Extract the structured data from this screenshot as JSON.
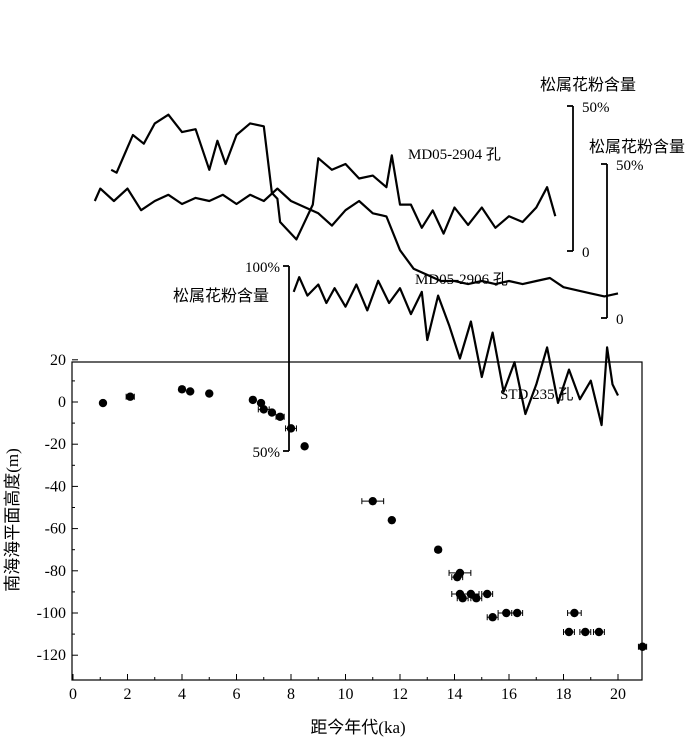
{
  "chart_data": {
    "type": "scatter",
    "xlabel": "距今年代(ka)",
    "ylabel": "南海海平面高度(m)",
    "xlim": [
      0,
      21
    ],
    "ylim": [
      -130,
      20
    ],
    "x_ticks": [
      "0",
      "2",
      "4",
      "6",
      "8",
      "10",
      "12",
      "14",
      "16",
      "18",
      "20"
    ],
    "y_ticks": [
      "20",
      "0",
      "-20",
      "-40",
      "-60",
      "-80",
      "-100",
      "-120"
    ],
    "sea_level_points": [
      {
        "x": 1.1,
        "y": -0.5,
        "xerr": 0.0
      },
      {
        "x": 2.1,
        "y": 2.5,
        "xerr": 0.15
      },
      {
        "x": 4.0,
        "y": 6.0,
        "xerr": 0.1
      },
      {
        "x": 4.3,
        "y": 5.0,
        "xerr": 0.0
      },
      {
        "x": 5.0,
        "y": 4.0,
        "xerr": 0.0
      },
      {
        "x": 6.6,
        "y": 1.0,
        "xerr": 0.0
      },
      {
        "x": 6.9,
        "y": -0.5,
        "xerr": 0.0
      },
      {
        "x": 7.0,
        "y": -3.5,
        "xerr": 0.2
      },
      {
        "x": 7.3,
        "y": -5.0,
        "xerr": 0.0
      },
      {
        "x": 7.6,
        "y": -7.0,
        "xerr": 0.15
      },
      {
        "x": 8.0,
        "y": -12.5,
        "xerr": 0.2
      },
      {
        "x": 8.5,
        "y": -21.0,
        "xerr": 0.0
      },
      {
        "x": 11.0,
        "y": -47.0,
        "xerr": 0.4
      },
      {
        "x": 11.7,
        "y": -56.0,
        "xerr": 0.0
      },
      {
        "x": 13.4,
        "y": -70.0,
        "xerr": 0.1
      },
      {
        "x": 14.2,
        "y": -81.0,
        "xerr": 0.4
      },
      {
        "x": 14.1,
        "y": -83.0,
        "xerr": 0.2
      },
      {
        "x": 14.2,
        "y": -91.0,
        "xerr": 0.3
      },
      {
        "x": 14.3,
        "y": -93.0,
        "xerr": 0.2
      },
      {
        "x": 14.6,
        "y": -91.0,
        "xerr": 0.3
      },
      {
        "x": 14.8,
        "y": -93.0,
        "xerr": 0.2
      },
      {
        "x": 15.2,
        "y": -91.0,
        "xerr": 0.2
      },
      {
        "x": 15.4,
        "y": -102.0,
        "xerr": 0.2
      },
      {
        "x": 15.9,
        "y": -100.0,
        "xerr": 0.3
      },
      {
        "x": 16.3,
        "y": -100.0,
        "xerr": 0.2
      },
      {
        "x": 18.2,
        "y": -109.0,
        "xerr": 0.2
      },
      {
        "x": 18.4,
        "y": -100.0,
        "xerr": 0.25
      },
      {
        "x": 18.8,
        "y": -109.0,
        "xerr": 0.2
      },
      {
        "x": 19.3,
        "y": -109.0,
        "xerr": 0.2
      },
      {
        "x": 20.9,
        "y": -116.0,
        "xerr": 0.15
      }
    ],
    "pollen_records": [
      {
        "label": "MD05-2904 孔",
        "scale_title": "松属花粉含量",
        "scale_top_label": "50%",
        "scale_bottom_label": "0",
        "scale_range": [
          0,
          50
        ],
        "x": [
          1.4,
          1.6,
          2.2,
          2.6,
          3.0,
          3.5,
          4.0,
          4.5,
          5.0,
          5.3,
          5.6,
          6.0,
          6.5,
          7.0,
          7.3,
          7.5,
          7.6,
          8.0,
          8.2,
          8.4,
          8.8,
          9.0,
          9.5,
          10.0,
          10.5,
          11.0,
          11.5,
          11.7,
          12.0,
          12.4,
          12.8,
          13.2,
          13.6,
          14.0,
          14.5,
          15.0,
          15.5,
          16.0,
          16.5,
          17.0,
          17.4,
          17.7
        ],
        "values": [
          28,
          27,
          40,
          37,
          44,
          47,
          41,
          42,
          28,
          38,
          30,
          40,
          44,
          43,
          20,
          18,
          10,
          6,
          4,
          8,
          16,
          32,
          28,
          30,
          25,
          26,
          22,
          33,
          16,
          16,
          8,
          14,
          6,
          15,
          9,
          15,
          8,
          12,
          10,
          15,
          22,
          12
        ]
      },
      {
        "label": "MD05-2906 孔",
        "scale_title": "松属花粉含量",
        "scale_top_label": "50%",
        "scale_bottom_label": "0",
        "scale_range": [
          0,
          50
        ],
        "x": [
          0.8,
          1.0,
          1.5,
          2.0,
          2.5,
          3.0,
          3.5,
          4.0,
          4.5,
          5.0,
          5.5,
          6.0,
          6.5,
          7.0,
          7.5,
          8.0,
          8.5,
          9.0,
          9.5,
          10.0,
          10.5,
          11.0,
          11.5,
          12.0,
          12.5,
          13.0,
          13.5,
          14.0,
          14.5,
          15.0,
          15.5,
          16.0,
          16.5,
          17.0,
          17.5,
          18.0,
          18.5,
          19.0,
          19.5,
          20.0
        ],
        "values": [
          38,
          42,
          38,
          42,
          35,
          38,
          40,
          37,
          39,
          38,
          40,
          37,
          40,
          38,
          42,
          38,
          36,
          34,
          30,
          35,
          38,
          34,
          33,
          22,
          16,
          14,
          12,
          12,
          11,
          12,
          11,
          12,
          11,
          12,
          13,
          10,
          9,
          8,
          7,
          8
        ]
      },
      {
        "label": "STD 235 孔",
        "scale_title": "松属花粉含量",
        "scale_top_label": "100%",
        "scale_bottom_label": "50%",
        "scale_range": [
          50,
          100
        ],
        "x": [
          8.1,
          8.3,
          8.6,
          9.0,
          9.3,
          9.6,
          10.0,
          10.4,
          10.8,
          11.2,
          11.6,
          12.0,
          12.4,
          12.8,
          13.0,
          13.4,
          13.8,
          14.2,
          14.6,
          15.0,
          15.4,
          15.8,
          16.2,
          16.6,
          17.0,
          17.4,
          17.8,
          18.2,
          18.6,
          19.0,
          19.4,
          19.6,
          19.8,
          20.0
        ],
        "values": [
          93,
          97,
          92,
          95,
          90,
          94,
          89,
          95,
          88,
          96,
          90,
          94,
          87,
          93,
          80,
          92,
          84,
          75,
          85,
          70,
          82,
          66,
          74,
          60,
          68,
          78,
          63,
          72,
          64,
          69,
          57,
          78,
          68,
          65
        ]
      }
    ]
  }
}
